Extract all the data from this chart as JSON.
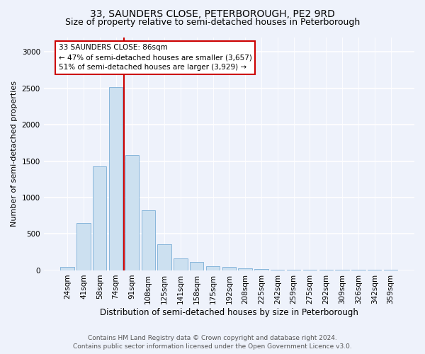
{
  "title": "33, SAUNDERS CLOSE, PETERBOROUGH, PE2 9RD",
  "subtitle": "Size of property relative to semi-detached houses in Peterborough",
  "xlabel": "Distribution of semi-detached houses by size in Peterborough",
  "ylabel": "Number of semi-detached properties",
  "footer_line1": "Contains HM Land Registry data © Crown copyright and database right 2024.",
  "footer_line2": "Contains public sector information licensed under the Open Government Licence v3.0.",
  "categories": [
    "24sqm",
    "41sqm",
    "58sqm",
    "74sqm",
    "91sqm",
    "108sqm",
    "125sqm",
    "141sqm",
    "158sqm",
    "175sqm",
    "192sqm",
    "208sqm",
    "225sqm",
    "242sqm",
    "259sqm",
    "275sqm",
    "292sqm",
    "309sqm",
    "326sqm",
    "342sqm",
    "359sqm"
  ],
  "values": [
    50,
    650,
    1430,
    2520,
    1580,
    830,
    360,
    165,
    120,
    55,
    45,
    30,
    20,
    10,
    10,
    5,
    5,
    5,
    5,
    5,
    5
  ],
  "bar_color": "#cce0f0",
  "bar_edge_color": "#7aaed6",
  "vline_color": "#cc0000",
  "vline_x": 3.5,
  "property_label": "33 SAUNDERS CLOSE: 86sqm",
  "annotation_line1": "← 47% of semi-detached houses are smaller (3,657)",
  "annotation_line2": "51% of semi-detached houses are larger (3,929) →",
  "ylim": [
    0,
    3200
  ],
  "yticks": [
    0,
    500,
    1000,
    1500,
    2000,
    2500,
    3000
  ],
  "background_color": "#eef2fb",
  "grid_color": "#ffffff",
  "title_fontsize": 10,
  "subtitle_fontsize": 9,
  "ylabel_fontsize": 8,
  "xlabel_fontsize": 8.5,
  "tick_fontsize": 7.5,
  "footer_fontsize": 6.5,
  "annot_fontsize": 7.5
}
